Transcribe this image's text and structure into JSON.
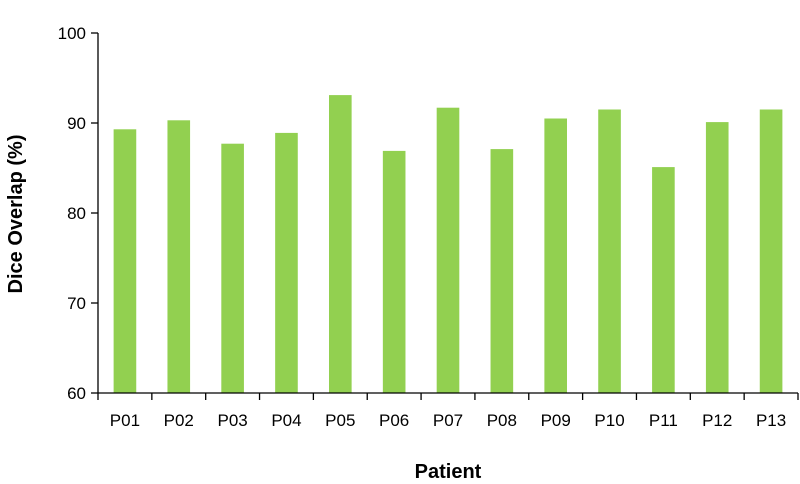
{
  "chart_data": {
    "type": "bar",
    "title": "",
    "xlabel": "Patient",
    "ylabel": "Dice Overlap (%)",
    "categories": [
      "P01",
      "P02",
      "P03",
      "P04",
      "P05",
      "P06",
      "P07",
      "P08",
      "P09",
      "P10",
      "P11",
      "P12",
      "P13"
    ],
    "values": [
      89.3,
      90.3,
      87.7,
      88.9,
      93.1,
      86.9,
      91.7,
      87.1,
      90.5,
      91.5,
      85.1,
      90.1,
      91.5
    ],
    "ylim": [
      60,
      100
    ],
    "yticks": [
      60,
      70,
      80,
      90,
      100
    ],
    "grid": false,
    "legend": "none",
    "bar_color": "#92d050"
  }
}
